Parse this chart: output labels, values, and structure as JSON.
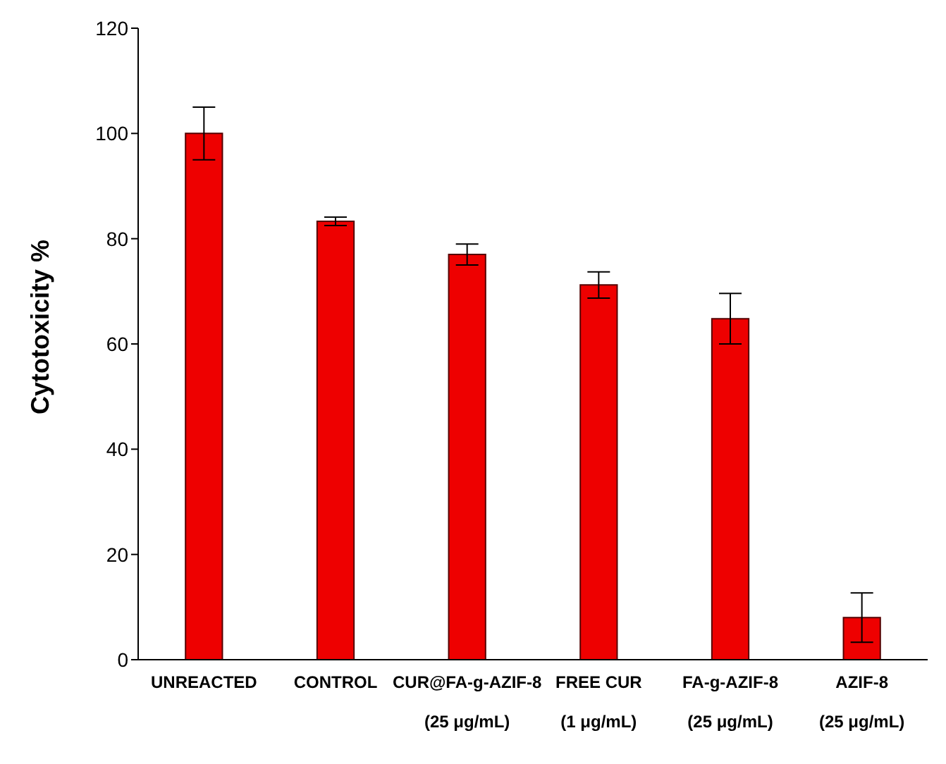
{
  "chart_data": {
    "type": "bar",
    "ylabel": "Cytotoxicity %",
    "categories": [
      "UNREACTED",
      "CONTROL",
      "CUR@FA-g-AZIF-8\n(25 μg/mL)",
      "FREE CUR\n(1 μg/mL)",
      "FA-g-AZIF-8\n(25 μg/mL)",
      "AZIF-8\n(25 μg/mL)"
    ],
    "values": [
      100,
      83.3,
      77,
      71.2,
      64.8,
      8
    ],
    "errors": [
      5,
      0.8,
      2,
      2.5,
      4.8,
      4.7
    ],
    "color": "#ee0000",
    "ylim": [
      0,
      120
    ],
    "yticks": [
      0,
      20,
      40,
      60,
      80,
      100,
      120
    ],
    "grid": false,
    "legend": false
  }
}
